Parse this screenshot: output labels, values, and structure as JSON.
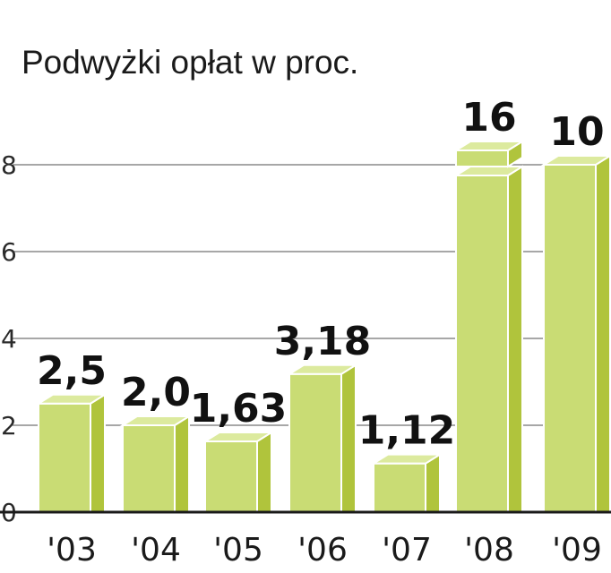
{
  "chart_data": {
    "type": "bar",
    "title": "Podwyżki opłat w proc.",
    "categories": [
      "'03",
      "'04",
      "'05",
      "'06",
      "'07",
      "'08",
      "'09"
    ],
    "values": [
      2.5,
      2.0,
      1.63,
      3.18,
      1.12,
      16,
      10
    ],
    "value_labels": [
      "2,5",
      "2,0",
      "1,63",
      "3,18",
      "1,12",
      "16",
      "10"
    ],
    "yticks": [
      "0",
      "2",
      "4",
      "6",
      "8"
    ],
    "ylim": [
      0,
      8
    ],
    "axis_break_on": [
      "'08"
    ],
    "grid": true,
    "colors": {
      "front": "#c9dc74",
      "side": "#b0c43c",
      "top": "#dcea9e",
      "edge": "#ffffff",
      "axis": "#1a1a1a",
      "grid": "#8a8a8a"
    }
  }
}
